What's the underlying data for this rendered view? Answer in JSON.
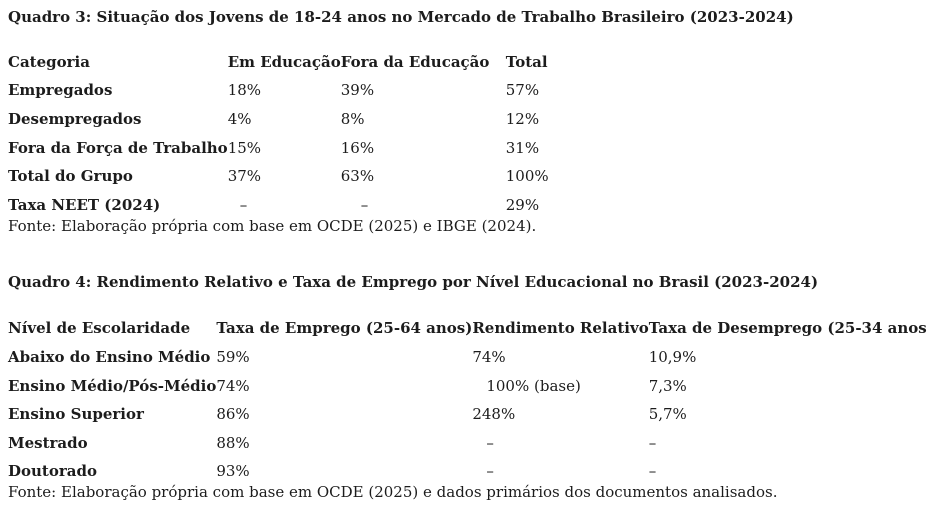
{
  "page": {
    "background": "#ffffff",
    "text_color": "#1c1c1c"
  },
  "quadro3": {
    "title": "Quadro 3: Situação dos Jovens de 18-24 anos no Mercado de Trabalho Brasileiro (2023-2024)",
    "columns": [
      "Categoria",
      "Em Educação",
      "Fora da Educação",
      "Total"
    ],
    "rows": [
      [
        "Empregados",
        "18%",
        "39%",
        "57%"
      ],
      [
        "Desempregados",
        "4%",
        "8%",
        "12%"
      ],
      [
        "Fora da Força de Trabalho",
        "15%",
        "16%",
        "31%"
      ],
      [
        "Total do Grupo",
        "37%",
        "63%",
        "100%"
      ],
      [
        "Taxa NEET (2024)",
        "–",
        "–",
        "29%"
      ]
    ],
    "source": "Fonte: Elaboração própria com base em OCDE (2025) e IBGE (2024)."
  },
  "quadro4": {
    "title": "Quadro 4: Rendimento Relativo e Taxa de Emprego por Nível Educacional no Brasil (2023-2024)",
    "columns": [
      "Nível de Escolaridade",
      "Taxa de Emprego (25-64 anos)",
      "Rendimento Relativo",
      "Taxa de Desemprego (25-34 anos)"
    ],
    "rows": [
      [
        "Abaixo do Ensino Médio",
        "59%",
        "74%",
        "10,9%"
      ],
      [
        "Ensino Médio/Pós-Médio",
        "74%",
        "100% (base)",
        "7,3%"
      ],
      [
        "Ensino Superior",
        "86%",
        "248%",
        "5,7%"
      ],
      [
        "Mestrado",
        "88%",
        "–",
        "–"
      ],
      [
        "Doutorado",
        "93%",
        "–",
        "–"
      ]
    ],
    "source": "Fonte: Elaboração própria com base em OCDE (2025) e dados primários dos documentos analisados."
  }
}
